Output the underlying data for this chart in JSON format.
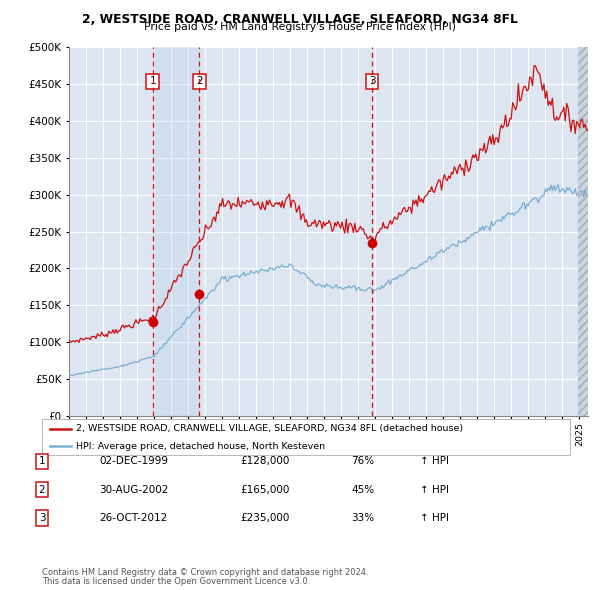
{
  "title1": "2, WESTSIDE ROAD, CRANWELL VILLAGE, SLEAFORD, NG34 8FL",
  "title2": "Price paid vs. HM Land Registry's House Price Index (HPI)",
  "ylim": [
    0,
    500000
  ],
  "yticks": [
    0,
    50000,
    100000,
    150000,
    200000,
    250000,
    300000,
    350000,
    400000,
    450000,
    500000
  ],
  "xlim_start": 1995.0,
  "xlim_end": 2025.5,
  "background_color": "#ffffff",
  "plot_bg_color": "#dde6f0",
  "grid_color": "#ffffff",
  "sale_color": "#cc1111",
  "hpi_color": "#7bafd4",
  "sale_marker_color": "#cc0000",
  "legend_sale_label": "2, WESTSIDE ROAD, CRANWELL VILLAGE, SLEAFORD, NG34 8FL (detached house)",
  "legend_hpi_label": "HPI: Average price, detached house, North Kesteven",
  "purchases": [
    {
      "num": 1,
      "date_label": "02-DEC-1999",
      "year": 1999.92,
      "price": 128000,
      "pct": "76%",
      "direction": "↑"
    },
    {
      "num": 2,
      "date_label": "30-AUG-2002",
      "year": 2002.66,
      "price": 165000,
      "pct": "45%",
      "direction": "↑"
    },
    {
      "num": 3,
      "date_label": "26-OCT-2012",
      "year": 2012.82,
      "price": 235000,
      "pct": "33%",
      "direction": "↑"
    }
  ],
  "footnote1": "Contains HM Land Registry data © Crown copyright and database right 2024.",
  "footnote2": "This data is licensed under the Open Government Licence v3.0."
}
